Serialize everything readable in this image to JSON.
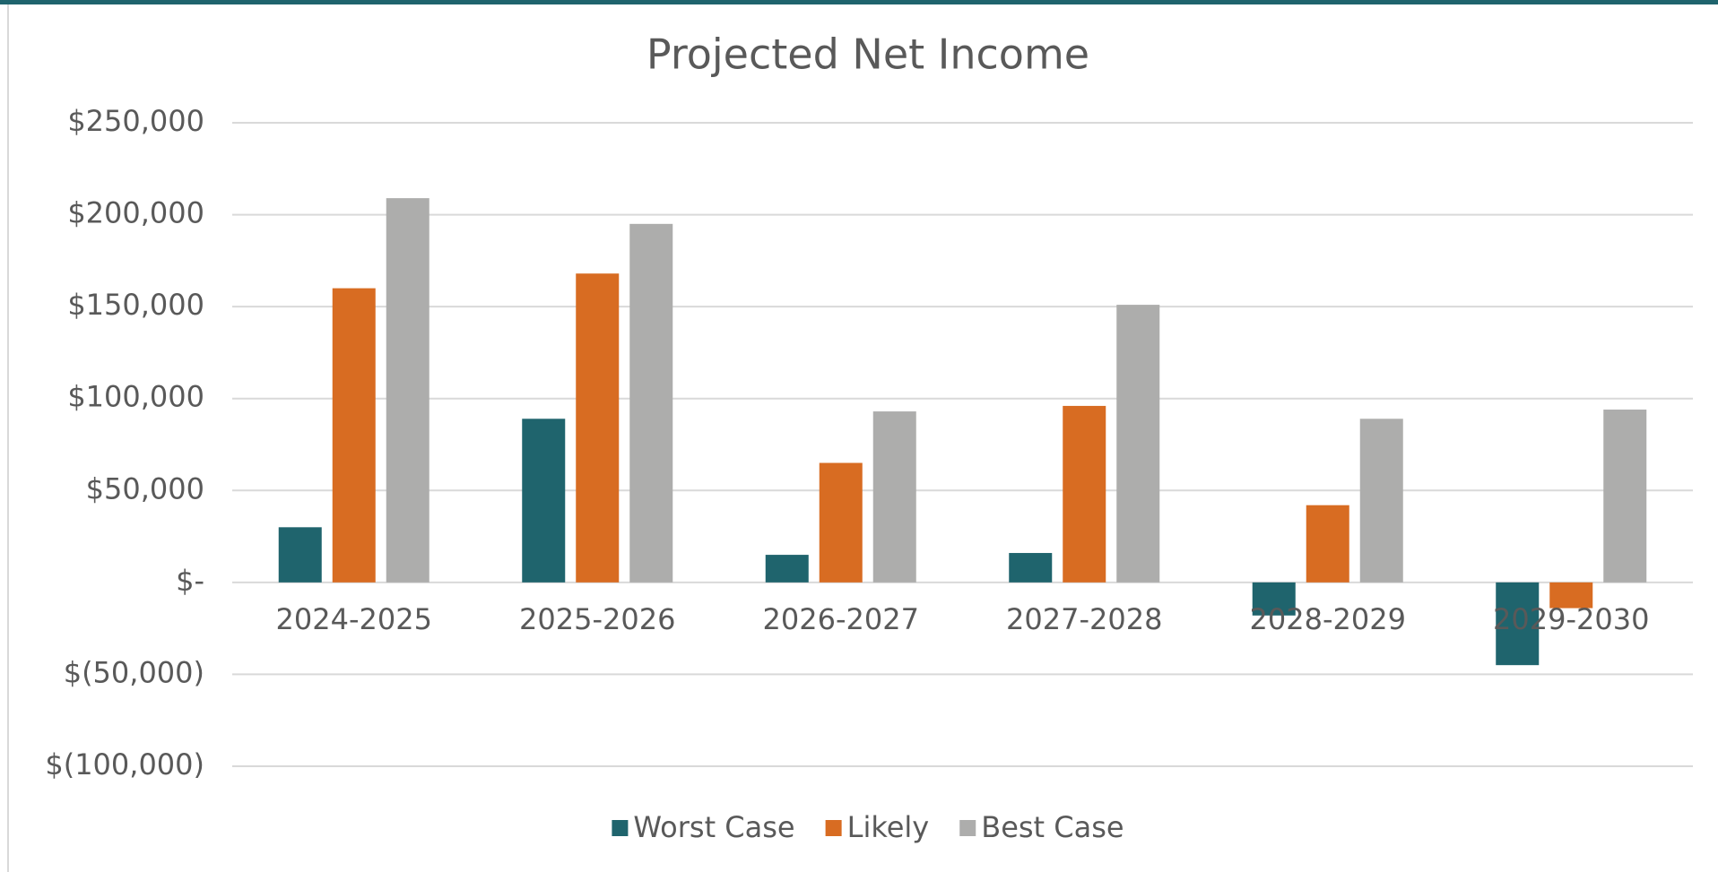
{
  "chart_data": {
    "type": "bar",
    "title": "Projected Net Income",
    "categories": [
      "2024-2025",
      "2025-2026",
      "2026-2027",
      "2027-2028",
      "2028-2029",
      "2029-2030"
    ],
    "series": [
      {
        "name": "Worst Case",
        "color": "#1f646d",
        "values": [
          30000,
          89000,
          15000,
          16000,
          -18000,
          -45000
        ]
      },
      {
        "name": "Likely",
        "color": "#d86c22",
        "values": [
          160000,
          168000,
          65000,
          96000,
          42000,
          -14000
        ]
      },
      {
        "name": "Best Case",
        "color": "#adadac",
        "values": [
          209000,
          195000,
          93000,
          151000,
          89000,
          94000
        ]
      }
    ],
    "ylim": [
      -100000,
      250000
    ],
    "yticks": [
      {
        "value": -100000,
        "label": "$(100,000)"
      },
      {
        "value": -50000,
        "label": "$(50,000)"
      },
      {
        "value": 0,
        "label": "$-"
      },
      {
        "value": 50000,
        "label": "$50,000"
      },
      {
        "value": 100000,
        "label": "$100,000"
      },
      {
        "value": 150000,
        "label": "$150,000"
      },
      {
        "value": 200000,
        "label": "$200,000"
      },
      {
        "value": 250000,
        "label": "$250,000"
      }
    ],
    "grid": true,
    "legend": "bottom"
  }
}
